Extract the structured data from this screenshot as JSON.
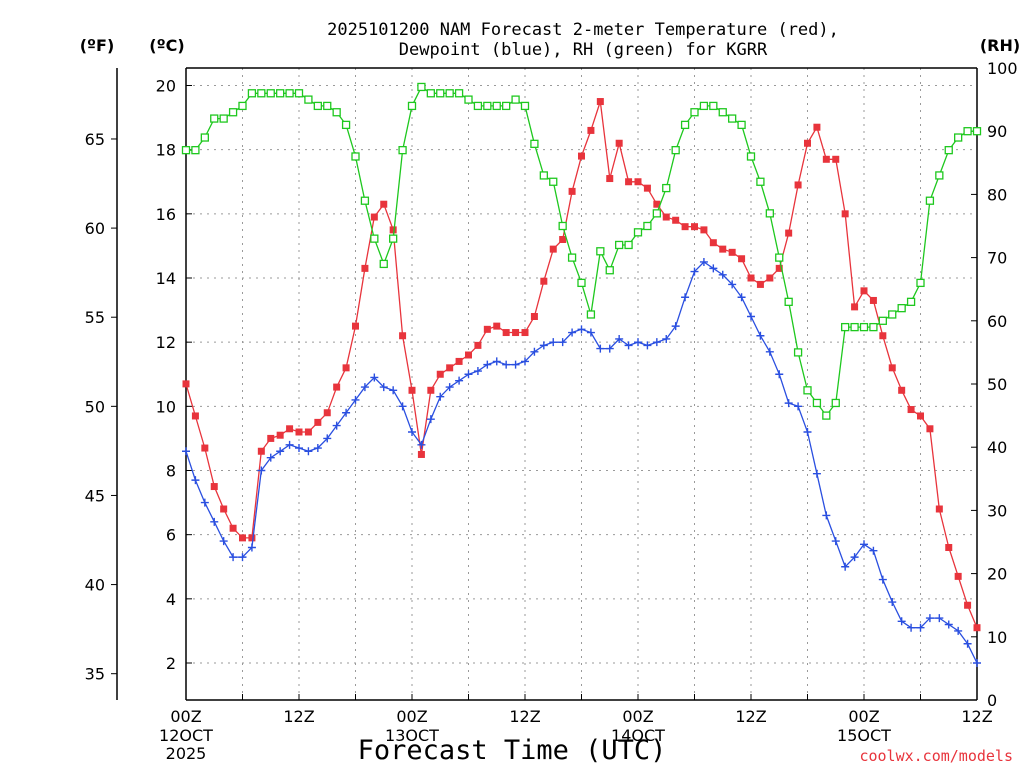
{
  "chart_data": {
    "type": "line",
    "title": "2025101200 NAM Forecast 2-meter Temperature (red),",
    "subtitle": "Dewpoint (blue), RH (green) for KGRR",
    "xlabel": "Forecast Time (UTC)",
    "left_unit_f": "(ºF)",
    "left_unit_c": "(ºC)",
    "right_unit": "(RH)",
    "credit": "coolwx.com/models",
    "x_range_hours": [
      0,
      84
    ],
    "y_range_c": [
      1,
      20.5
    ],
    "y2_range_rh": [
      0,
      100
    ],
    "grid": true,
    "x_ticks": [
      {
        "hour": 0,
        "label": "00Z",
        "sub": "12OCT",
        "sub2": "2025"
      },
      {
        "hour": 12,
        "label": "12Z",
        "sub": "",
        "sub2": ""
      },
      {
        "hour": 24,
        "label": "00Z",
        "sub": "13OCT",
        "sub2": ""
      },
      {
        "hour": 36,
        "label": "12Z",
        "sub": "",
        "sub2": ""
      },
      {
        "hour": 48,
        "label": "00Z",
        "sub": "14OCT",
        "sub2": ""
      },
      {
        "hour": 60,
        "label": "12Z",
        "sub": "",
        "sub2": ""
      },
      {
        "hour": 72,
        "label": "00Z",
        "sub": "15OCT",
        "sub2": ""
      },
      {
        "hour": 84,
        "label": "12Z",
        "sub": "",
        "sub2": ""
      }
    ],
    "y_ticks_c": [
      2,
      4,
      6,
      8,
      10,
      12,
      14,
      16,
      18,
      20
    ],
    "y_ticks_f": [
      35,
      40,
      45,
      50,
      55,
      60,
      65
    ],
    "y_ticks_rh": [
      0,
      10,
      20,
      30,
      40,
      50,
      60,
      70,
      80,
      90,
      100
    ],
    "series": [
      {
        "color": "#e8343c",
        "unit": "C",
        "marker": "filled-square",
        "x": [
          0,
          1,
          2,
          3,
          4,
          5,
          6,
          7,
          8,
          9,
          10,
          11,
          12,
          13,
          14,
          15,
          16,
          17,
          18,
          19,
          20,
          21,
          22,
          23,
          24,
          25,
          26,
          27,
          28,
          29,
          30,
          31,
          32,
          33,
          34,
          35,
          36,
          37,
          38,
          39,
          40,
          41,
          42,
          43,
          44,
          45,
          46,
          47,
          48,
          49,
          50,
          51,
          52,
          53,
          54,
          55,
          56,
          57,
          58,
          59,
          60,
          61,
          62,
          63,
          64,
          65,
          66,
          67,
          68,
          69,
          70,
          71,
          72,
          73,
          74,
          75,
          76,
          77,
          78,
          79,
          80,
          81,
          82,
          83,
          84
        ],
        "values": [
          10.7,
          9.7,
          8.7,
          7.5,
          6.8,
          6.2,
          5.9,
          5.9,
          8.6,
          9.0,
          9.1,
          9.3,
          9.2,
          9.2,
          9.5,
          9.8,
          10.6,
          11.2,
          12.5,
          14.3,
          15.9,
          16.3,
          15.5,
          12.2,
          10.5,
          8.5,
          10.5,
          11.0,
          11.2,
          11.4,
          11.6,
          11.9,
          12.4,
          12.5,
          12.3,
          12.3,
          12.3,
          12.8,
          13.9,
          14.9,
          15.2,
          16.7,
          17.8,
          18.6,
          19.5,
          17.1,
          18.2,
          17.0,
          17.0,
          16.8,
          16.3,
          15.9,
          15.8,
          15.6,
          15.6,
          15.5,
          15.1,
          14.9,
          14.8,
          14.6,
          14.0,
          13.8,
          14.0,
          14.3,
          15.4,
          16.9,
          18.2,
          18.7,
          17.7,
          17.7,
          16.0,
          13.1,
          13.6,
          13.3,
          12.2,
          11.2,
          10.5,
          9.9,
          9.7,
          9.3,
          6.8,
          5.6,
          4.7,
          3.8,
          3.1
        ]
      },
      {
        "color": "#2a4fe0",
        "unit": "C",
        "marker": "plus",
        "x": [
          0,
          1,
          2,
          3,
          4,
          5,
          6,
          7,
          8,
          9,
          10,
          11,
          12,
          13,
          14,
          15,
          16,
          17,
          18,
          19,
          20,
          21,
          22,
          23,
          24,
          25,
          26,
          27,
          28,
          29,
          30,
          31,
          32,
          33,
          34,
          35,
          36,
          37,
          38,
          39,
          40,
          41,
          42,
          43,
          44,
          45,
          46,
          47,
          48,
          49,
          50,
          51,
          52,
          53,
          54,
          55,
          56,
          57,
          58,
          59,
          60,
          61,
          62,
          63,
          64,
          65,
          66,
          67,
          68,
          69,
          70,
          71,
          72,
          73,
          74,
          75,
          76,
          77,
          78,
          79,
          80,
          81,
          82,
          83,
          84
        ],
        "values": [
          8.6,
          7.7,
          7.0,
          6.4,
          5.8,
          5.3,
          5.3,
          5.6,
          8.0,
          8.4,
          8.6,
          8.8,
          8.7,
          8.6,
          8.7,
          9.0,
          9.4,
          9.8,
          10.2,
          10.6,
          10.9,
          10.6,
          10.5,
          10.0,
          9.2,
          8.8,
          9.6,
          10.3,
          10.6,
          10.8,
          11.0,
          11.1,
          11.3,
          11.4,
          11.3,
          11.3,
          11.4,
          11.7,
          11.9,
          12.0,
          12.0,
          12.3,
          12.4,
          12.3,
          11.8,
          11.8,
          12.1,
          11.9,
          12.0,
          11.9,
          12.0,
          12.1,
          12.5,
          13.4,
          14.2,
          14.5,
          14.3,
          14.1,
          13.8,
          13.4,
          12.8,
          12.2,
          11.7,
          11.0,
          10.1,
          10.0,
          9.2,
          7.9,
          6.6,
          5.8,
          5.0,
          5.3,
          5.7,
          5.5,
          4.6,
          3.9,
          3.3,
          3.1,
          3.1,
          3.4,
          3.4,
          3.2,
          3.0,
          2.6,
          2.0
        ]
      },
      {
        "color": "#1ec81e",
        "unit": "RH",
        "marker": "open-square",
        "x": [
          0,
          1,
          2,
          3,
          4,
          5,
          6,
          7,
          8,
          9,
          10,
          11,
          12,
          13,
          14,
          15,
          16,
          17,
          18,
          19,
          20,
          21,
          22,
          23,
          24,
          25,
          26,
          27,
          28,
          29,
          30,
          31,
          32,
          33,
          34,
          35,
          36,
          37,
          38,
          39,
          40,
          41,
          42,
          43,
          44,
          45,
          46,
          47,
          48,
          49,
          50,
          51,
          52,
          53,
          54,
          55,
          56,
          57,
          58,
          59,
          60,
          61,
          62,
          63,
          64,
          65,
          66,
          67,
          68,
          69,
          70,
          71,
          72,
          73,
          74,
          75,
          76,
          77,
          78,
          79,
          80,
          81,
          82,
          83,
          84
        ],
        "values": [
          87,
          87,
          89,
          92,
          92,
          93,
          94,
          96,
          96,
          96,
          96,
          96,
          96,
          95,
          94,
          94,
          93,
          91,
          86,
          79,
          73,
          69,
          73,
          87,
          94,
          97,
          96,
          96,
          96,
          96,
          95,
          94,
          94,
          94,
          94,
          95,
          94,
          88,
          83,
          82,
          75,
          70,
          66,
          61,
          71,
          68,
          72,
          72,
          74,
          75,
          77,
          81,
          87,
          91,
          93,
          94,
          94,
          93,
          92,
          91,
          86,
          82,
          77,
          70,
          63,
          55,
          49,
          47,
          45,
          47,
          59,
          59,
          59,
          59,
          60,
          61,
          62,
          63,
          66,
          79,
          83,
          87,
          89,
          90,
          90
        ]
      }
    ]
  }
}
